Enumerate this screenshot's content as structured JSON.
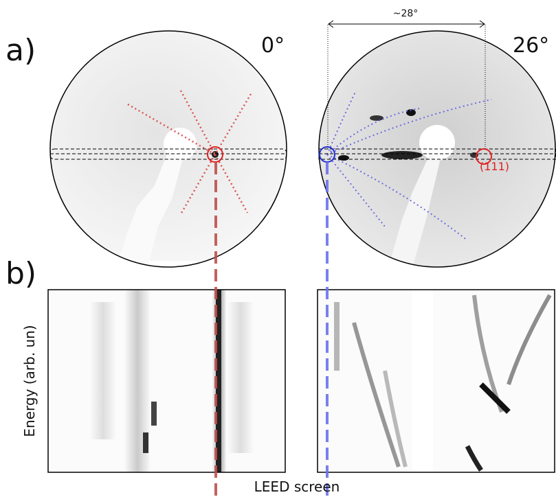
{
  "panel_a": {
    "label": "a)",
    "left_angle": "0°",
    "right_angle": "26°",
    "spacing": "~28°",
    "spot_label": "(111)"
  },
  "panel_b": {
    "label": "b)",
    "y_axis": "Energy (arb. un)",
    "x_axis": "LEED screen"
  }
}
